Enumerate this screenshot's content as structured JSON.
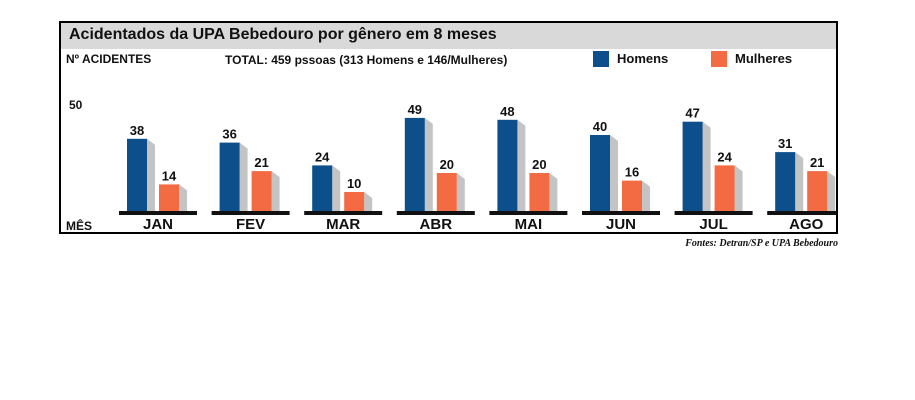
{
  "chart_data": {
    "type": "bar",
    "title": "Acidentados da UPA Bebedouro por gênero em 8 meses",
    "subtitle": "TOTAL: 459 pssoas (313 Homens e 146/Mulheres)",
    "ylabel": "Nº ACIDENTES",
    "xlabel": "MÊS",
    "categories": [
      "JAN",
      "FEV",
      "MAR",
      "ABR",
      "MAI",
      "JUN",
      "JUL",
      "AGO"
    ],
    "series": [
      {
        "name": "Homens",
        "color": "#0d4f8b",
        "values": [
          38,
          36,
          24,
          49,
          48,
          40,
          47,
          31
        ]
      },
      {
        "name": "Mulheres",
        "color": "#f26b43",
        "values": [
          14,
          21,
          10,
          20,
          20,
          16,
          24,
          21
        ]
      }
    ],
    "yticks": [
      "50"
    ],
    "ylim": [
      0,
      50
    ],
    "grid": false,
    "legend": "top-right",
    "source": "Fontes: Detran/SP e UPA Bebedouro"
  }
}
